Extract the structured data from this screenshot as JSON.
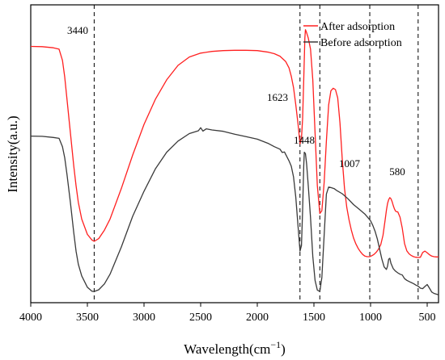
{
  "chart_data": {
    "type": "line",
    "title": "",
    "xlabel": "Wavelength(cm",
    "xlabel_sup": "−1",
    "xlabel_close": ")",
    "ylabel": "Intensity(a.u.)",
    "xlim": [
      4000,
      400
    ],
    "x_reversed": true,
    "x_ticks": [
      4000,
      3500,
      3000,
      2500,
      2000,
      1500,
      1000,
      500
    ],
    "y_ticks_shown": false,
    "legend_position": "top-right",
    "annotations": [
      {
        "label": "3440",
        "x": 3440
      },
      {
        "label": "1623",
        "x": 1623
      },
      {
        "label": "1448",
        "x": 1448
      },
      {
        "label": "1007",
        "x": 1007
      },
      {
        "label": "580",
        "x": 580
      }
    ],
    "series": [
      {
        "name": "After adsorption",
        "color": "#ff2020",
        "x": [
          4000,
          3900,
          3800,
          3750,
          3720,
          3700,
          3680,
          3650,
          3620,
          3600,
          3580,
          3550,
          3500,
          3460,
          3440,
          3400,
          3350,
          3300,
          3200,
          3100,
          3000,
          2900,
          2800,
          2700,
          2600,
          2500,
          2400,
          2300,
          2200,
          2100,
          2000,
          1900,
          1850,
          1800,
          1750,
          1720,
          1700,
          1680,
          1660,
          1640,
          1623,
          1610,
          1600,
          1590,
          1580,
          1575,
          1565,
          1550,
          1530,
          1510,
          1490,
          1470,
          1448,
          1430,
          1410,
          1390,
          1370,
          1350,
          1330,
          1310,
          1290,
          1270,
          1250,
          1230,
          1210,
          1190,
          1170,
          1150,
          1130,
          1110,
          1090,
          1070,
          1050,
          1030,
          1010,
          990,
          970,
          950,
          930,
          910,
          890,
          870,
          860,
          850,
          840,
          830,
          820,
          810,
          800,
          790,
          780,
          770,
          760,
          740,
          720,
          700,
          680,
          660,
          640,
          620,
          600,
          580,
          560,
          540,
          520,
          500,
          480,
          460,
          440,
          420,
          400
        ],
        "y": [
          0.9,
          0.899,
          0.895,
          0.89,
          0.85,
          0.79,
          0.71,
          0.59,
          0.47,
          0.4,
          0.34,
          0.28,
          0.225,
          0.205,
          0.2,
          0.21,
          0.24,
          0.28,
          0.39,
          0.51,
          0.62,
          0.71,
          0.78,
          0.832,
          0.862,
          0.876,
          0.882,
          0.885,
          0.886,
          0.886,
          0.885,
          0.879,
          0.874,
          0.865,
          0.846,
          0.823,
          0.793,
          0.752,
          0.69,
          0.62,
          0.55,
          0.57,
          0.64,
          0.78,
          0.93,
          0.96,
          0.95,
          0.93,
          0.89,
          0.78,
          0.59,
          0.4,
          0.3,
          0.31,
          0.41,
          0.56,
          0.69,
          0.741,
          0.75,
          0.745,
          0.715,
          0.625,
          0.495,
          0.39,
          0.322,
          0.277,
          0.241,
          0.212,
          0.191,
          0.175,
          0.163,
          0.153,
          0.147,
          0.145,
          0.145,
          0.148,
          0.153,
          0.161,
          0.172,
          0.188,
          0.222,
          0.281,
          0.312,
          0.336,
          0.35,
          0.357,
          0.353,
          0.343,
          0.329,
          0.317,
          0.309,
          0.306,
          0.306,
          0.287,
          0.247,
          0.192,
          0.166,
          0.155,
          0.149,
          0.145,
          0.143,
          0.142,
          0.143,
          0.16,
          0.165,
          0.159,
          0.152,
          0.147,
          0.145,
          0.144,
          0.144
        ]
      },
      {
        "name": "Before adsorption",
        "color": "#3a3a3a",
        "x": [
          4000,
          3900,
          3800,
          3750,
          3720,
          3700,
          3680,
          3650,
          3620,
          3600,
          3580,
          3550,
          3500,
          3460,
          3440,
          3400,
          3350,
          3300,
          3200,
          3100,
          3000,
          2900,
          2800,
          2700,
          2600,
          2520,
          2500,
          2480,
          2450,
          2400,
          2300,
          2200,
          2100,
          2000,
          1900,
          1850,
          1800,
          1780,
          1760,
          1740,
          1720,
          1700,
          1680,
          1660,
          1640,
          1623,
          1610,
          1600,
          1590,
          1585,
          1575,
          1565,
          1550,
          1530,
          1510,
          1490,
          1470,
          1448,
          1430,
          1410,
          1390,
          1370,
          1350,
          1320,
          1300,
          1250,
          1200,
          1150,
          1100,
          1050,
          1000,
          980,
          960,
          940,
          920,
          900,
          880,
          860,
          850,
          840,
          830,
          820,
          800,
          780,
          760,
          740,
          720,
          700,
          680,
          650,
          620,
          600,
          580,
          560,
          540,
          520,
          500,
          480,
          460,
          440,
          400
        ],
        "y": [
          0.578,
          0.577,
          0.573,
          0.57,
          0.54,
          0.5,
          0.44,
          0.34,
          0.23,
          0.165,
          0.118,
          0.076,
          0.035,
          0.021,
          0.02,
          0.026,
          0.047,
          0.082,
          0.18,
          0.29,
          0.38,
          0.46,
          0.52,
          0.56,
          0.587,
          0.597,
          0.608,
          0.596,
          0.604,
          0.6,
          0.595,
          0.585,
          0.576,
          0.567,
          0.551,
          0.54,
          0.531,
          0.519,
          0.521,
          0.505,
          0.489,
          0.47,
          0.431,
          0.358,
          0.253,
          0.165,
          0.185,
          0.31,
          0.47,
          0.52,
          0.515,
          0.48,
          0.4,
          0.285,
          0.146,
          0.06,
          0.025,
          0.02,
          0.07,
          0.22,
          0.37,
          0.395,
          0.393,
          0.389,
          0.383,
          0.371,
          0.353,
          0.332,
          0.315,
          0.298,
          0.274,
          0.257,
          0.236,
          0.208,
          0.172,
          0.136,
          0.108,
          0.099,
          0.111,
          0.136,
          0.139,
          0.121,
          0.102,
          0.093,
          0.087,
          0.082,
          0.079,
          0.066,
          0.06,
          0.054,
          0.048,
          0.043,
          0.039,
          0.032,
          0.03,
          0.038,
          0.045,
          0.032,
          0.018,
          0.013,
          0.008
        ]
      }
    ]
  }
}
